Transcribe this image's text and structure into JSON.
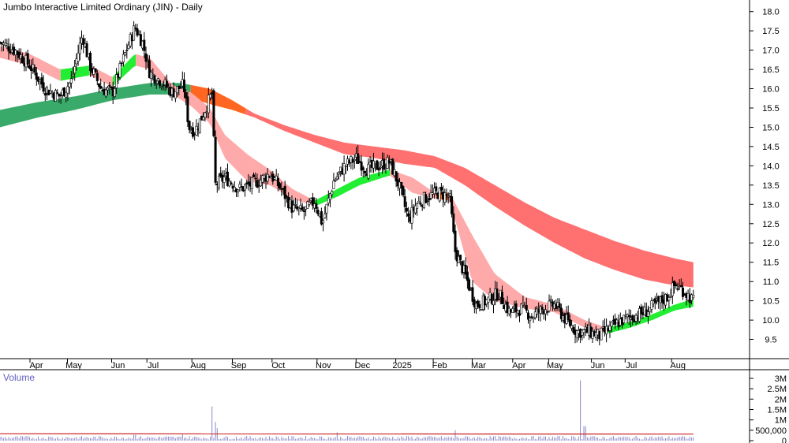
{
  "chart_data": {
    "type": "line",
    "title": "Jumbo Interactive Limited Ordinary (JIN) - Daily",
    "volume_label": "Volume",
    "months": [
      {
        "label": "Apr",
        "x": 0.04
      },
      {
        "label": "May",
        "x": 0.09
      },
      {
        "label": "Jun",
        "x": 0.149
      },
      {
        "label": "Jul",
        "x": 0.196
      },
      {
        "label": "Aug",
        "x": 0.256
      },
      {
        "label": "Sep",
        "x": 0.31
      },
      {
        "label": "Oct",
        "x": 0.363
      },
      {
        "label": "Nov",
        "x": 0.423
      },
      {
        "label": "Dec",
        "x": 0.475
      },
      {
        "label": "2025",
        "x": 0.528
      },
      {
        "label": "Feb",
        "x": 0.578
      },
      {
        "label": "Mar",
        "x": 0.63
      },
      {
        "label": "Apr",
        "x": 0.684
      },
      {
        "label": "May",
        "x": 0.732
      },
      {
        "label": "Jun",
        "x": 0.789
      },
      {
        "label": "Jul",
        "x": 0.834
      },
      {
        "label": "Aug",
        "x": 0.896
      }
    ],
    "price_axis": {
      "min": 9.0,
      "max": 18.3,
      "ticks": [
        "18.0",
        "17.5",
        "17.0",
        "16.5",
        "16.0",
        "15.5",
        "15.0",
        "14.5",
        "14.0",
        "13.5",
        "13.0",
        "12.5",
        "12.0",
        "11.5",
        "11.0",
        "10.5",
        "10.0",
        "9.5"
      ]
    },
    "volume_axis": {
      "min": 0,
      "max": 3000000,
      "ticks": [
        {
          "label": "3M",
          "v": 3000000
        },
        {
          "label": "2.5M",
          "v": 2500000
        },
        {
          "label": "2M",
          "v": 2000000
        },
        {
          "label": "1.5M",
          "v": 1500000
        },
        {
          "label": "1M",
          "v": 1000000
        },
        {
          "label": "500,000",
          "v": 500000
        },
        {
          "label": "0",
          "v": 0
        }
      ]
    },
    "price_close": [
      [
        0.0,
        17.2
      ],
      [
        0.02,
        17.0
      ],
      [
        0.04,
        16.6
      ],
      [
        0.06,
        16.0
      ],
      [
        0.08,
        15.8
      ],
      [
        0.095,
        16.2
      ],
      [
        0.11,
        17.4
      ],
      [
        0.12,
        16.6
      ],
      [
        0.135,
        16.0
      ],
      [
        0.15,
        15.9
      ],
      [
        0.165,
        16.8
      ],
      [
        0.18,
        17.6
      ],
      [
        0.19,
        17.2
      ],
      [
        0.2,
        16.4
      ],
      [
        0.215,
        16.2
      ],
      [
        0.23,
        15.9
      ],
      [
        0.245,
        16.1
      ],
      [
        0.252,
        15.0
      ],
      [
        0.26,
        14.9
      ],
      [
        0.27,
        15.3
      ],
      [
        0.283,
        15.9
      ],
      [
        0.287,
        13.5
      ],
      [
        0.3,
        13.7
      ],
      [
        0.32,
        13.4
      ],
      [
        0.345,
        13.6
      ],
      [
        0.36,
        13.8
      ],
      [
        0.375,
        13.4
      ],
      [
        0.39,
        12.9
      ],
      [
        0.405,
        12.8
      ],
      [
        0.42,
        13.1
      ],
      [
        0.43,
        12.5
      ],
      [
        0.445,
        13.6
      ],
      [
        0.46,
        14.0
      ],
      [
        0.475,
        14.2
      ],
      [
        0.49,
        13.9
      ],
      [
        0.505,
        14.0
      ],
      [
        0.52,
        14.1
      ],
      [
        0.532,
        13.5
      ],
      [
        0.545,
        12.6
      ],
      [
        0.555,
        13.0
      ],
      [
        0.57,
        13.2
      ],
      [
        0.585,
        13.3
      ],
      [
        0.6,
        13.2
      ],
      [
        0.607,
        11.8
      ],
      [
        0.62,
        11.2
      ],
      [
        0.635,
        10.4
      ],
      [
        0.65,
        10.5
      ],
      [
        0.665,
        10.7
      ],
      [
        0.68,
        10.2
      ],
      [
        0.695,
        10.3
      ],
      [
        0.71,
        10.1
      ],
      [
        0.725,
        10.3
      ],
      [
        0.74,
        10.4
      ],
      [
        0.755,
        10.0
      ],
      [
        0.77,
        9.7
      ],
      [
        0.785,
        9.7
      ],
      [
        0.8,
        9.6
      ],
      [
        0.815,
        9.8
      ],
      [
        0.83,
        10.0
      ],
      [
        0.845,
        10.1
      ],
      [
        0.86,
        10.2
      ],
      [
        0.875,
        10.4
      ],
      [
        0.89,
        10.6
      ],
      [
        0.9,
        10.9
      ],
      [
        0.91,
        10.8
      ],
      [
        0.925,
        10.5
      ]
    ],
    "fast_ma_band": [
      [
        0.0,
        17.1,
        16.8
      ],
      [
        0.04,
        16.9,
        16.6
      ],
      [
        0.08,
        16.5,
        16.2
      ],
      [
        0.12,
        16.6,
        16.35
      ],
      [
        0.15,
        16.3,
        16.05
      ],
      [
        0.18,
        16.9,
        16.6
      ],
      [
        0.2,
        16.8,
        16.5
      ],
      [
        0.23,
        16.1,
        15.85
      ],
      [
        0.255,
        15.9,
        15.55
      ],
      [
        0.28,
        15.5,
        15.1
      ],
      [
        0.3,
        14.8,
        14.2
      ],
      [
        0.33,
        14.3,
        13.6
      ],
      [
        0.36,
        13.9,
        13.5
      ],
      [
        0.39,
        13.4,
        13.15
      ],
      [
        0.42,
        13.1,
        12.95
      ],
      [
        0.45,
        13.4,
        13.2
      ],
      [
        0.48,
        13.7,
        13.5
      ],
      [
        0.52,
        13.9,
        13.75
      ],
      [
        0.55,
        13.7,
        13.3
      ],
      [
        0.58,
        13.3,
        13.15
      ],
      [
        0.6,
        13.3,
        13.1
      ],
      [
        0.63,
        12.2,
        11.0
      ],
      [
        0.66,
        11.2,
        10.5
      ],
      [
        0.7,
        10.6,
        10.3
      ],
      [
        0.74,
        10.4,
        10.2
      ],
      [
        0.78,
        10.0,
        9.8
      ],
      [
        0.81,
        9.8,
        9.65
      ],
      [
        0.84,
        9.95,
        9.8
      ],
      [
        0.87,
        10.15,
        10.0
      ],
      [
        0.9,
        10.4,
        10.25
      ],
      [
        0.925,
        10.55,
        10.35
      ]
    ],
    "slow_ma_band": [
      [
        0.0,
        15.45,
        15.0
      ],
      [
        0.05,
        15.65,
        15.25
      ],
      [
        0.1,
        15.8,
        15.45
      ],
      [
        0.15,
        16.0,
        15.7
      ],
      [
        0.2,
        16.15,
        15.85
      ],
      [
        0.24,
        16.15,
        15.85
      ],
      [
        0.28,
        16.0,
        15.6
      ],
      [
        0.31,
        15.7,
        15.45
      ],
      [
        0.34,
        15.35,
        15.25
      ],
      [
        0.38,
        15.05,
        14.9
      ],
      [
        0.42,
        14.8,
        14.6
      ],
      [
        0.46,
        14.6,
        14.3
      ],
      [
        0.5,
        14.5,
        14.2
      ],
      [
        0.54,
        14.4,
        14.05
      ],
      [
        0.58,
        14.25,
        13.95
      ],
      [
        0.62,
        13.95,
        13.5
      ],
      [
        0.66,
        13.5,
        12.95
      ],
      [
        0.7,
        13.05,
        12.45
      ],
      [
        0.74,
        12.65,
        12.0
      ],
      [
        0.78,
        12.35,
        11.6
      ],
      [
        0.82,
        12.05,
        11.3
      ],
      [
        0.86,
        11.8,
        11.05
      ],
      [
        0.9,
        11.6,
        10.9
      ],
      [
        0.925,
        11.5,
        10.85
      ]
    ],
    "ma_colors": {
      "fast_up": "#22ee33",
      "fast_down_dark": "#ff6622",
      "fast_down_light": "#ffaaaa",
      "slow_up": "#3aaa6a",
      "slow_down_dark": "#ff6622",
      "slow_down": "#ff7070"
    },
    "volume_spikes": [
      [
        0.283,
        1650000
      ],
      [
        0.287,
        900000
      ],
      [
        0.29,
        600000
      ],
      [
        0.608,
        500000
      ],
      [
        0.774,
        2900000
      ],
      [
        0.78,
        700000
      ],
      [
        0.45,
        400000
      ],
      [
        0.244,
        300000
      ],
      [
        0.18,
        280000
      ]
    ],
    "volume_base": 120000,
    "volume_ma": 330000,
    "colors": {
      "candle": "#000000",
      "volume": "#8888cc",
      "volume_ma": "#cc2222",
      "axis": "#000000"
    }
  }
}
